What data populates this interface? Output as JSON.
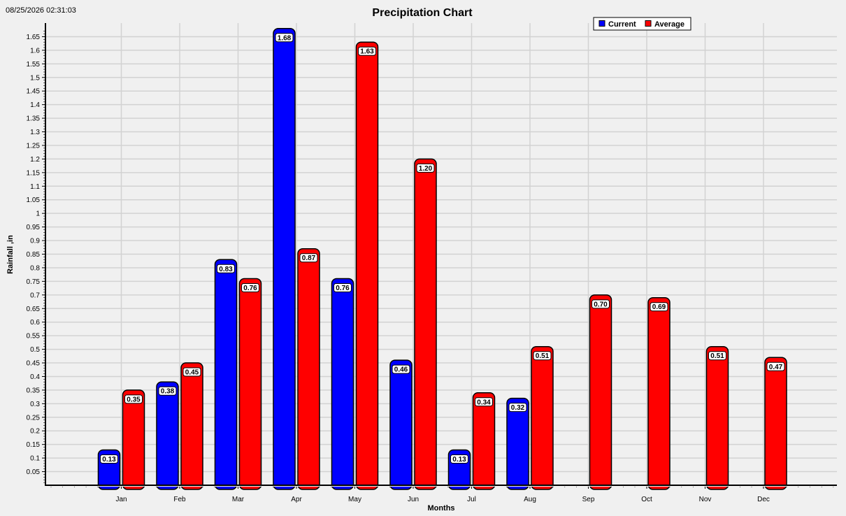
{
  "timestamp": "08/25/2026 02:31:03",
  "chart_data": {
    "type": "bar",
    "title": "Precipitation Chart",
    "xlabel": "Months",
    "ylabel": "Rainfall ,in",
    "categories": [
      "Jan",
      "Feb",
      "Mar",
      "Apr",
      "May",
      "Jun",
      "Jul",
      "Aug",
      "Sep",
      "Oct",
      "Nov",
      "Dec"
    ],
    "series": [
      {
        "name": "Current",
        "color": "#0000ff",
        "values": [
          0.13,
          0.38,
          0.83,
          1.68,
          0.76,
          0.46,
          0.13,
          0.32,
          null,
          null,
          null,
          null
        ],
        "labels": [
          "0.13",
          "0.38",
          "0.83",
          "1.68",
          "0.76",
          "0.46",
          "0.13",
          "0.32",
          null,
          null,
          null,
          null
        ]
      },
      {
        "name": "Average",
        "color": "#ff0000",
        "values": [
          0.35,
          0.45,
          0.76,
          0.87,
          1.63,
          1.2,
          0.34,
          0.51,
          0.7,
          0.69,
          0.51,
          0.47
        ],
        "labels": [
          "0.35",
          "0.45",
          "0.76",
          "0.87",
          "1.63",
          "1.20",
          "0.34",
          "0.51",
          "0.70",
          "0.69",
          "0.51",
          "0.47"
        ]
      }
    ],
    "ylim": [
      0,
      1.68
    ],
    "y_ticks": [
      "0.05",
      "0.1",
      "0.15",
      "0.2",
      "0.25",
      "0.3",
      "0.35",
      "0.4",
      "0.45",
      "0.5",
      "0.55",
      "0.6",
      "0.65",
      "0.7",
      "0.75",
      "0.8",
      "0.85",
      "0.9",
      "0.95",
      "1",
      "1.05",
      "1.1",
      "1.15",
      "1.2",
      "1.25",
      "1.3",
      "1.35",
      "1.4",
      "1.45",
      "1.5",
      "1.55",
      "1.6",
      "1.65"
    ],
    "grid": true,
    "legend_position": "top-right"
  }
}
